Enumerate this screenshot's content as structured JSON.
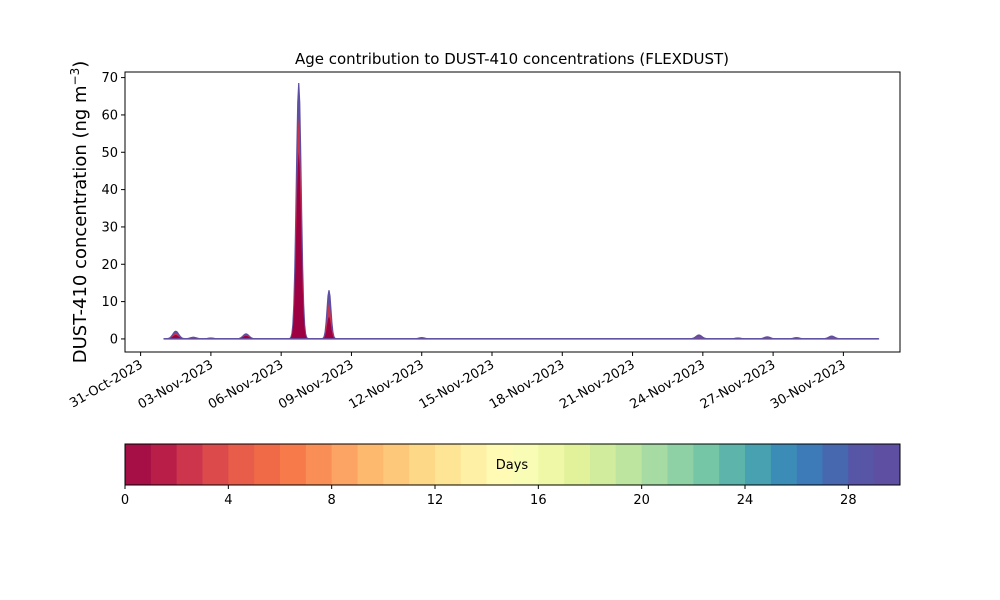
{
  "chart_data": {
    "type": "area",
    "title": "Age contribution to DUST-410 concentrations (FLEXDUST)",
    "ylabel_main": "DUST-410 concentration (ng m",
    "ylabel_sup": "−3",
    "ylabel_close": ")",
    "xlabel": "",
    "x_axis": {
      "type": "date",
      "ticks": [
        "31-Oct-2023",
        "03-Nov-2023",
        "06-Nov-2023",
        "09-Nov-2023",
        "12-Nov-2023",
        "15-Nov-2023",
        "18-Nov-2023",
        "21-Nov-2023",
        "24-Nov-2023",
        "27-Nov-2023",
        "30-Nov-2023"
      ],
      "range": [
        "2023-10-30T08:00",
        "2023-12-02T10:00"
      ]
    },
    "y_axis": {
      "ticks": [
        0,
        10,
        20,
        30,
        40,
        50,
        60,
        70
      ],
      "ylim": [
        -3.5,
        71.5
      ]
    },
    "grid": false,
    "series_layers": [
      {
        "age_days": "0-1",
        "color": "#9e0142"
      },
      {
        "age_days": "1-2",
        "color": "#b41d47"
      },
      {
        "age_days": "2-3",
        "color": "#c9344b"
      },
      {
        "age_days": "29-30",
        "color": "#5e4fa2"
      }
    ],
    "peaks": [
      {
        "x": "2023-11-01T12:00",
        "total": 2,
        "age_0_1": 1.0
      },
      {
        "x": "2023-11-02T06:00",
        "total": 0.4,
        "age_0_1": 0.2
      },
      {
        "x": "2023-11-03T00:00",
        "total": 0.2,
        "age_0_1": 0.1
      },
      {
        "x": "2023-11-04T12:00",
        "total": 1.3,
        "age_0_1": 0.8
      },
      {
        "x": "2023-11-06T18:00",
        "total": 68.5,
        "age_0_1": 50
      },
      {
        "x": "2023-11-08T01:00",
        "total": 13,
        "age_0_1": 6
      },
      {
        "x": "2023-11-12T00:00",
        "total": 0.3,
        "age_0_1": 0.05
      },
      {
        "x": "2023-11-23T20:00",
        "total": 1.0,
        "age_0_1": 0.1
      },
      {
        "x": "2023-11-25T12:00",
        "total": 0.2,
        "age_0_1": 0.05
      },
      {
        "x": "2023-11-26T18:00",
        "total": 0.5,
        "age_0_1": 0.05
      },
      {
        "x": "2023-11-28T00:00",
        "total": 0.3,
        "age_0_1": 0.05
      },
      {
        "x": "2023-11-29T12:00",
        "total": 0.7,
        "age_0_1": 0.05
      }
    ],
    "data_start": "2023-11-01T00:00",
    "data_end": "2023-12-01T12:00",
    "colorbar": {
      "label": "Days",
      "min": 0,
      "max": 30,
      "ticks": [
        0,
        4,
        8,
        12,
        16,
        20,
        24,
        28
      ],
      "colors": [
        "#a50f45",
        "#b91e48",
        "#cd354c",
        "#dc4a4c",
        "#e75d4a",
        "#f06a47",
        "#f67a4a",
        "#f98f56",
        "#fba463",
        "#fdb96e",
        "#fec87a",
        "#fdd887",
        "#fee596",
        "#fef1a6",
        "#fffbb5",
        "#f8fcb5",
        "#eef8a6",
        "#e2f29b",
        "#d1ec9c",
        "#bde59f",
        "#a6dba3",
        "#8ed1a5",
        "#74c6a6",
        "#5cb4aa",
        "#48a1b1",
        "#3b8db8",
        "#3d7ab8",
        "#4767af",
        "#5755a6",
        "#5e4fa2"
      ]
    }
  }
}
